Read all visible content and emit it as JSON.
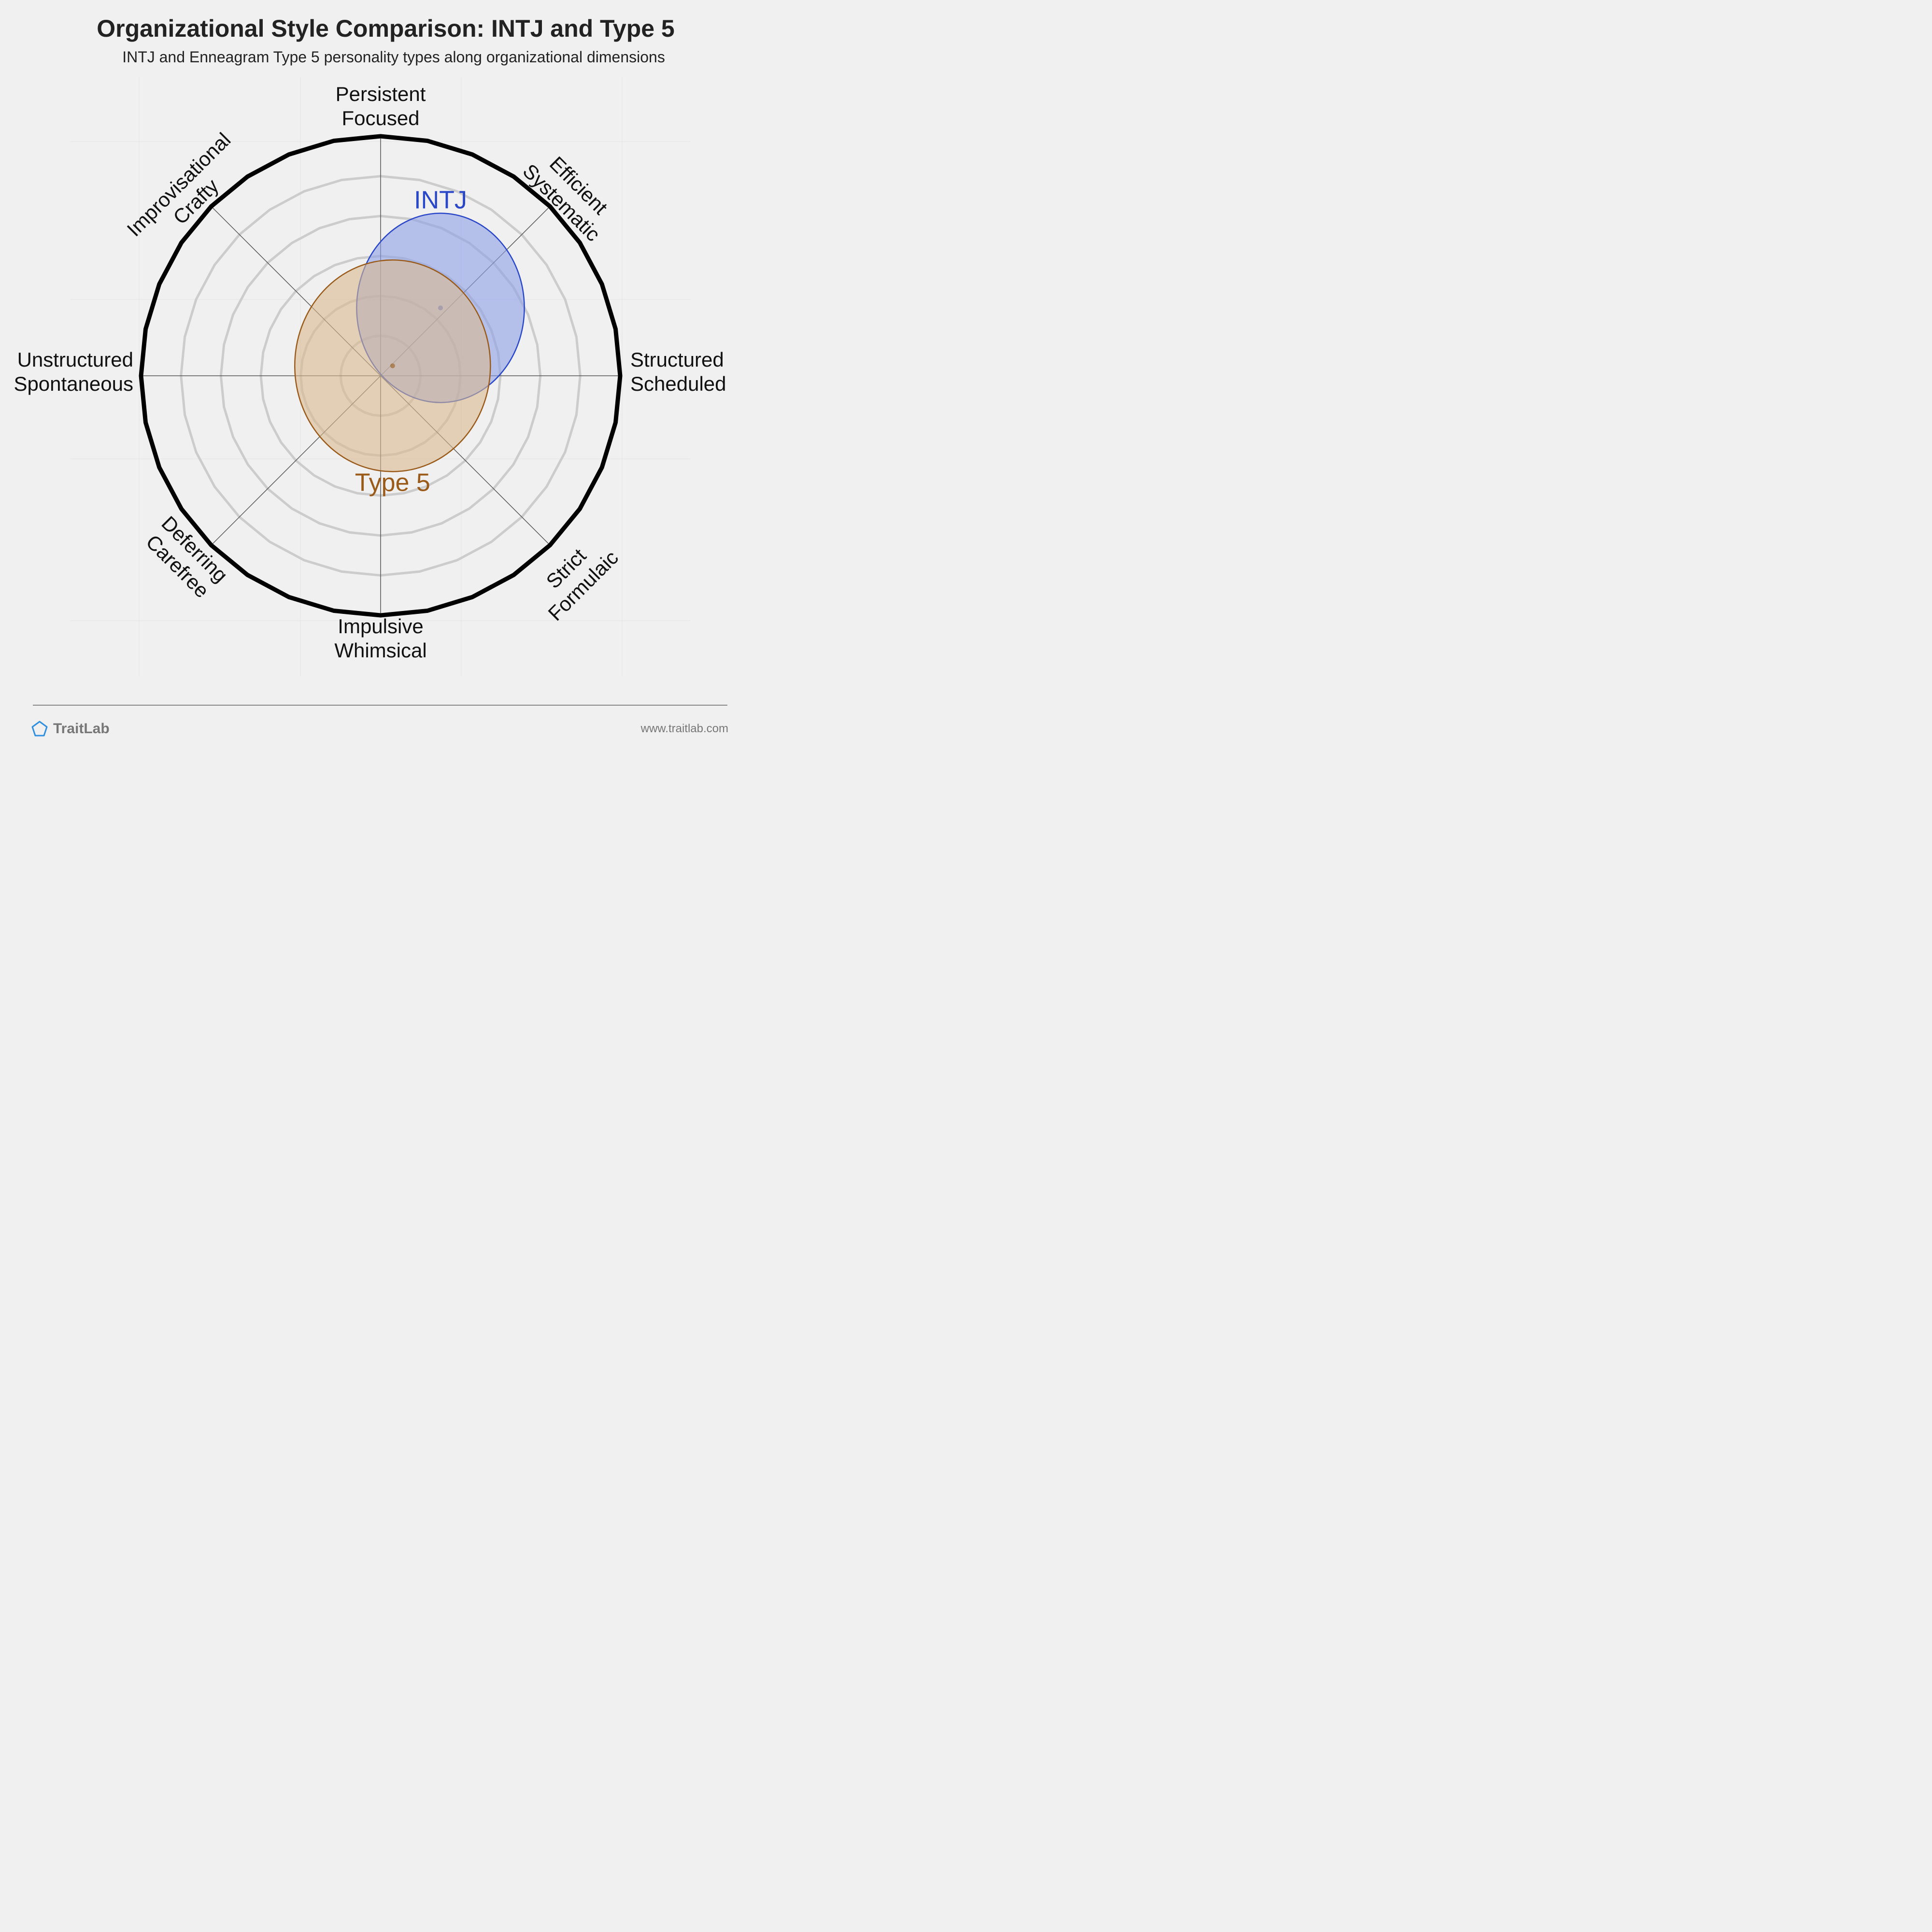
{
  "header": {
    "title": "Organizational Style Comparison: INTJ and Type 5",
    "subtitle": "INTJ and Enneagram Type 5 personality types along organizational dimensions"
  },
  "footer": {
    "brand": "TraitLab",
    "website": "www.traitlab.com"
  },
  "chart_data": {
    "type": "scatter",
    "axes": [
      {
        "direction": "up",
        "lines": [
          "Persistent",
          "Focused"
        ]
      },
      {
        "direction": "up-right",
        "lines": [
          "Efficient",
          "Systematic"
        ]
      },
      {
        "direction": "right",
        "lines": [
          "Structured",
          "Scheduled"
        ]
      },
      {
        "direction": "down-right",
        "lines": [
          "Strict",
          "Formulaic"
        ]
      },
      {
        "direction": "down",
        "lines": [
          "Impulsive",
          "Whimsical"
        ]
      },
      {
        "direction": "down-left",
        "lines": [
          "Deferring",
          "Carefree"
        ]
      },
      {
        "direction": "left",
        "lines": [
          "Unstructured",
          "Spontaneous"
        ]
      },
      {
        "direction": "up-left",
        "lines": [
          "Improvisational",
          "Crafty"
        ]
      }
    ],
    "range": [
      0,
      6
    ],
    "series": [
      {
        "name": "INTJ",
        "x": 1.5,
        "y": 1.7,
        "rx": 2.1,
        "ry": 2.37,
        "color": "#2a47c8",
        "fill": "#8c9fe6"
      },
      {
        "name": "Type 5",
        "x": 0.3,
        "y": 0.25,
        "rx": 2.45,
        "ry": 2.65,
        "color": "#9a5b1a",
        "fill": "#d9b98f"
      }
    ],
    "grid": true
  }
}
